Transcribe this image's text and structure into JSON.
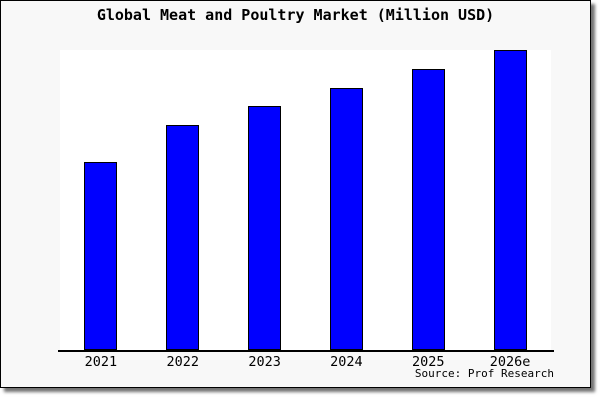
{
  "title": "Global Meat and Poultry Market (Million USD)",
  "source_note": "Source: Prof Research",
  "colors": {
    "bar_fill": "#0000ff",
    "bar_border": "#000000",
    "figure_bg": "#f8f8f8",
    "plot_bg": "#ffffff",
    "axis_line": "#000000",
    "text": "#000000"
  },
  "chart_data": {
    "type": "bar",
    "title": "Global Meat and Poultry Market (Million USD)",
    "categories": [
      "2021",
      "2022",
      "2023",
      "2024",
      "2025",
      "2026e"
    ],
    "values": [
      188,
      225,
      244,
      262,
      281,
      300
    ],
    "value_note": "No y-axis or data labels shown; values are relative bar heights estimated from pixels (arbitrary units)",
    "xlabel": "",
    "ylabel": "",
    "ylim": [
      0,
      300
    ],
    "grid": false,
    "legend": false,
    "source": "Prof Research"
  }
}
